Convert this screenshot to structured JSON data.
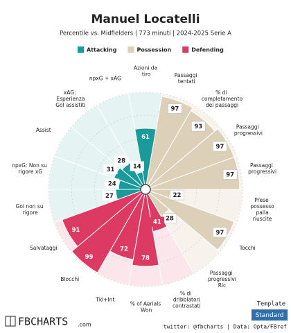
{
  "chart_data": {
    "type": "pizza",
    "title": "Manuel Locatelli",
    "subtitle": "Percentile vs. Midfielders | 773 minuti | 2024-2025 Serie A",
    "categories": [
      "Azioni da tiro",
      "Passaggi tentati",
      "% di completamento dei passaggi",
      "Passaggi progressivi",
      "Passaggi progressivi",
      "Prese possesso palla riuscite",
      "Tocchi",
      "Passaggi progressivi Ric",
      "% di dribblatori contrastati",
      "% of Aerials Won",
      "Tkl+Int",
      "Blocchi",
      "Salvataggi",
      "Gol non su rigore",
      "npxG: Non su rigore xG",
      "Assist",
      "xAG: Esperienza Gol assistiti",
      "npxG + xAG"
    ],
    "series": [
      {
        "name": "Attacking",
        "color": "#1b9a9c",
        "background": "#e5f3f3",
        "values": [
          61,
          null,
          null,
          null,
          null,
          null,
          null,
          null,
          null,
          null,
          null,
          null,
          null,
          27,
          24,
          31,
          28,
          14
        ]
      },
      {
        "name": "Possession",
        "color": "#dcd0b8",
        "background": "#f7f3ec",
        "values": [
          null,
          97,
          93,
          97,
          97,
          22,
          97,
          28,
          null,
          null,
          null,
          null,
          null,
          null,
          null,
          null,
          null,
          null
        ]
      },
      {
        "name": "Defending",
        "color": "#dc3a62",
        "background": "#fbe6ec",
        "values": [
          null,
          null,
          null,
          null,
          null,
          null,
          null,
          null,
          41,
          78,
          72,
          99,
          91,
          null,
          null,
          null,
          null,
          null
        ]
      }
    ],
    "rlim": [
      0,
      100
    ],
    "rticks": [
      25,
      50,
      75,
      100
    ],
    "grid": true
  },
  "footer": {
    "template_label": "Template",
    "template": "Standard",
    "credit": "twitter: @fbcharts | Data: Opta/FBref",
    "logo": "FBCHARTS",
    "logo_suffix": ".com"
  }
}
